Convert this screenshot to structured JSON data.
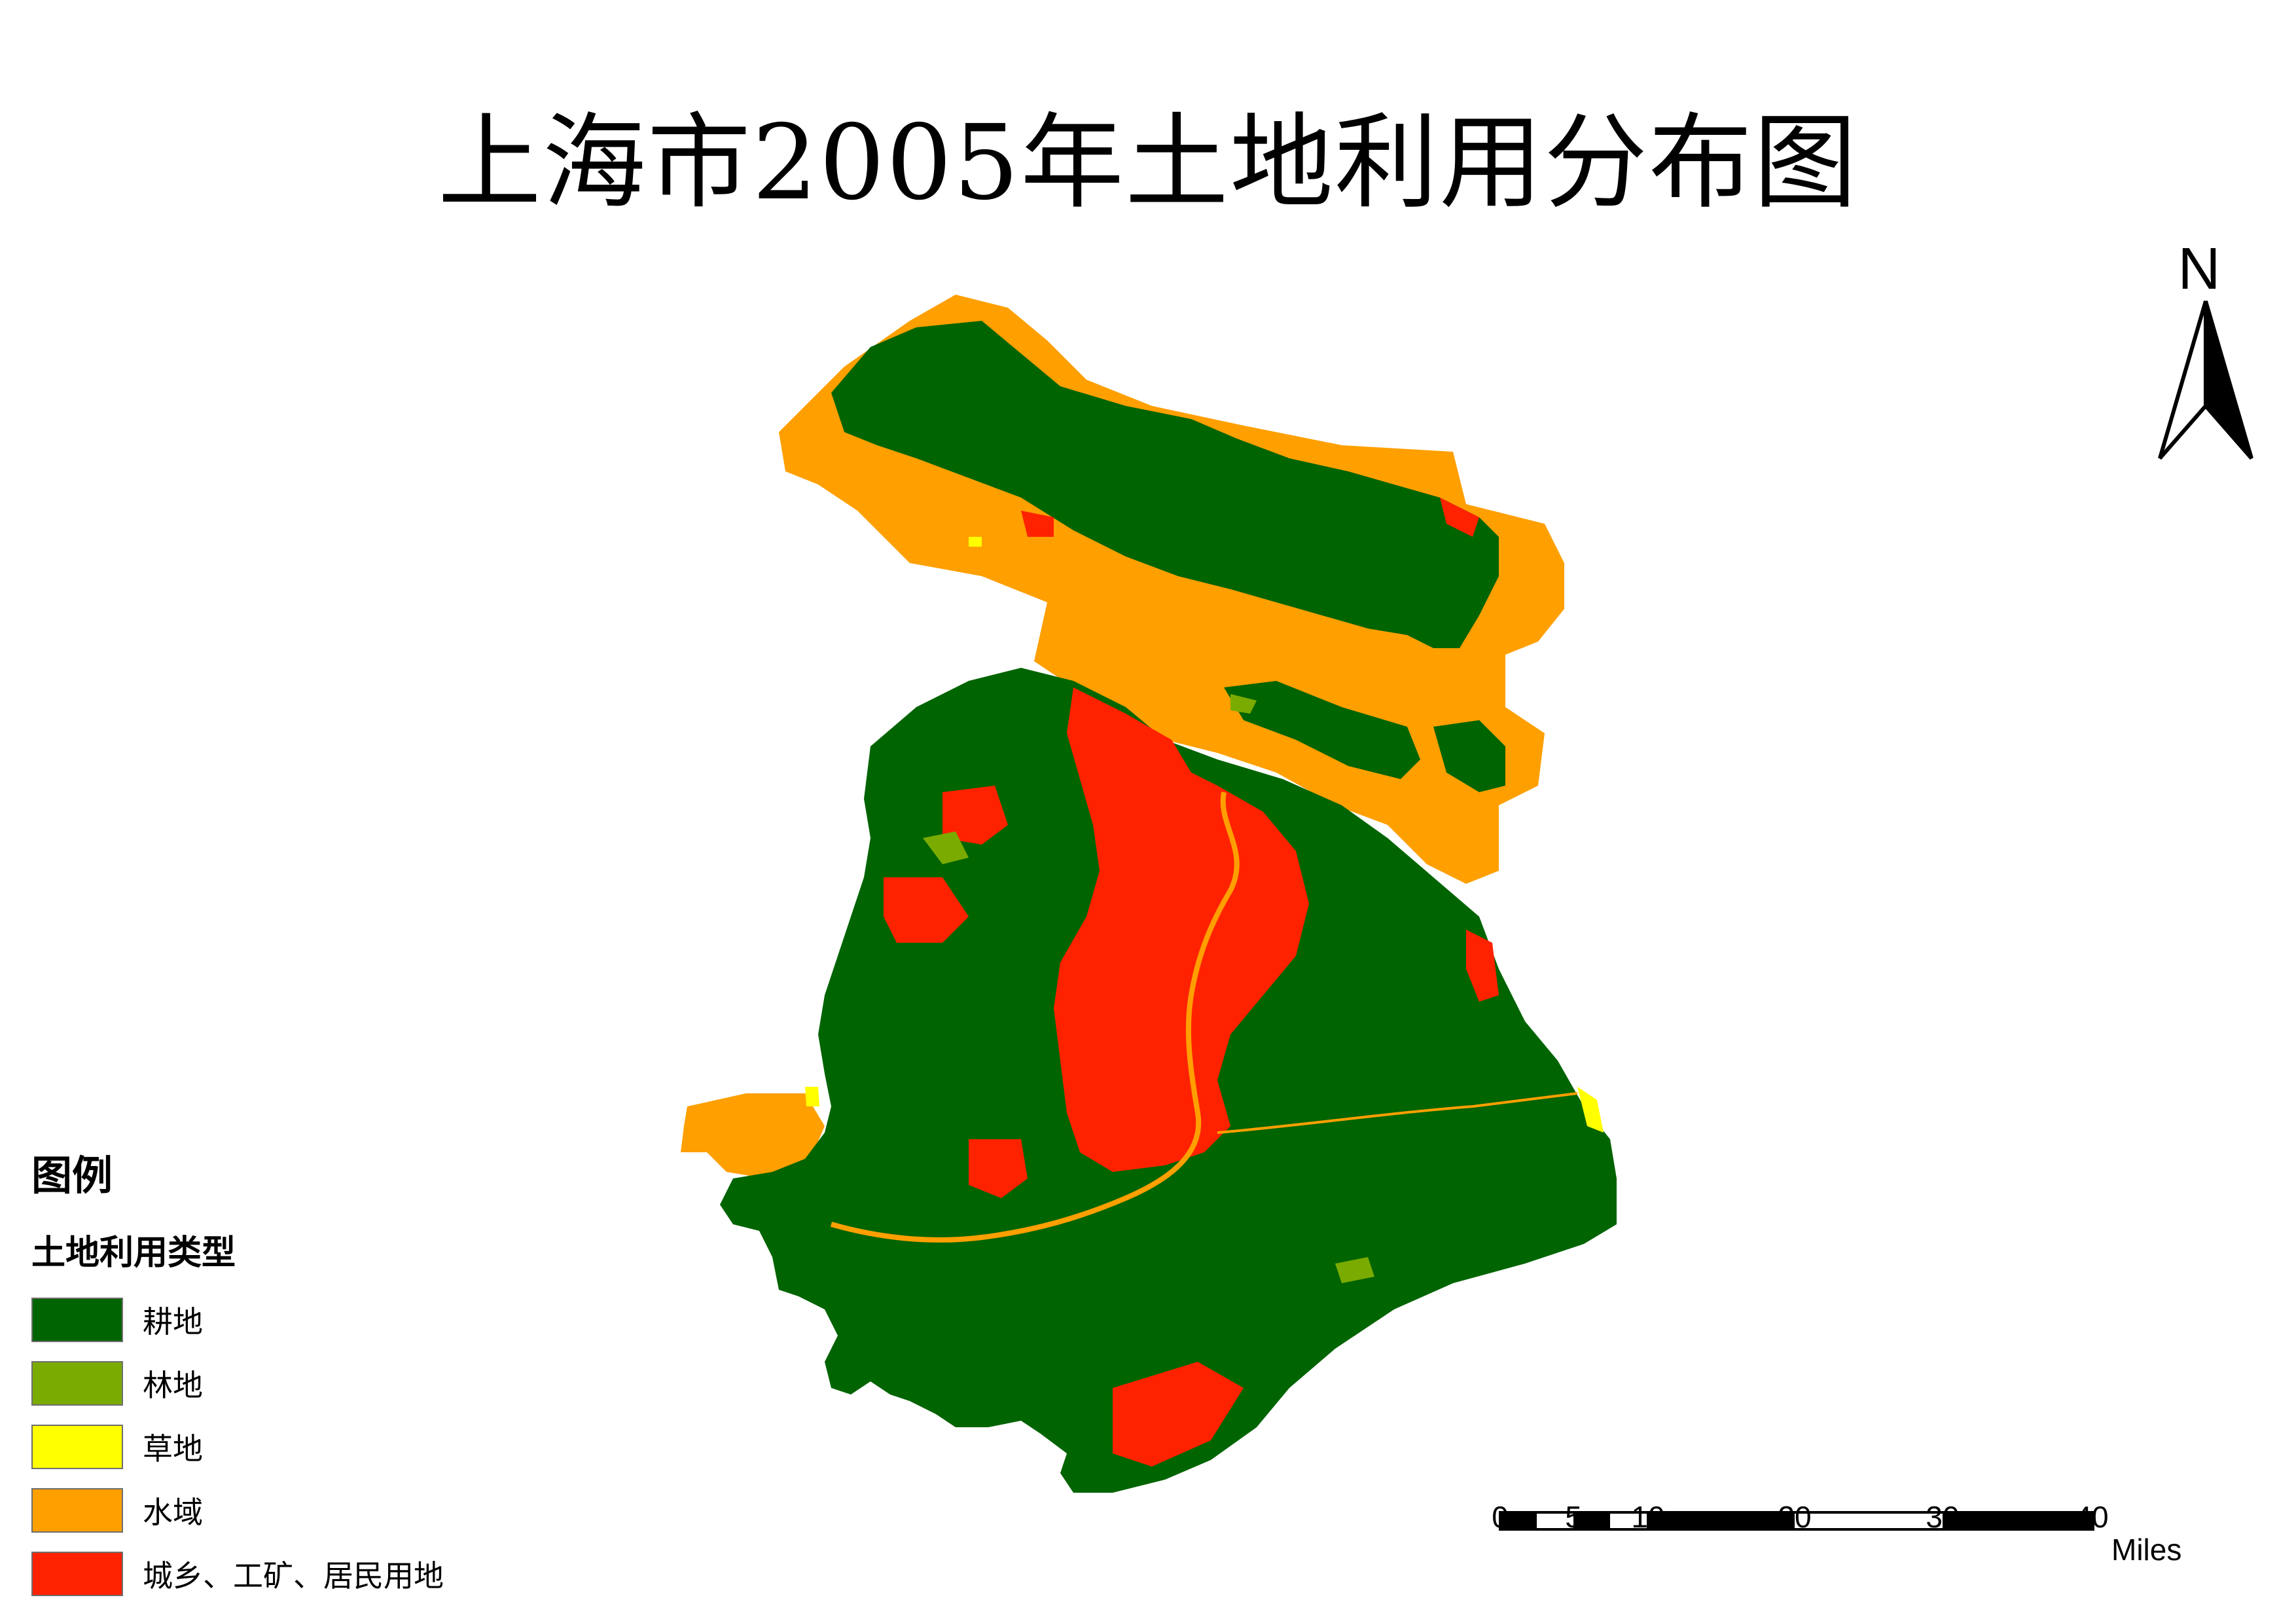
{
  "title": "上海市2005年土地利用分布图",
  "colors": {
    "cropland": "#006400",
    "forest": "#7aab00",
    "grassland": "#ffff00",
    "water": "#ff9f00",
    "urban": "#ff2200"
  },
  "legend": {
    "title": "图例",
    "subtitle": "土地利用类型",
    "items": [
      {
        "label": "耕地",
        "color": "#006400"
      },
      {
        "label": "林地",
        "color": "#7aab00"
      },
      {
        "label": "草地",
        "color": "#ffff00"
      },
      {
        "label": "水域",
        "color": "#ff9f00"
      },
      {
        "label": "城乡、工矿、居民用地",
        "color": "#ff2200"
      }
    ]
  },
  "north_arrow": {
    "label": "N",
    "icon": "north-arrow-icon"
  },
  "scale_bar": {
    "ticks": [
      "0",
      "5",
      "10",
      "20",
      "30",
      "40"
    ],
    "unit": "Miles"
  }
}
